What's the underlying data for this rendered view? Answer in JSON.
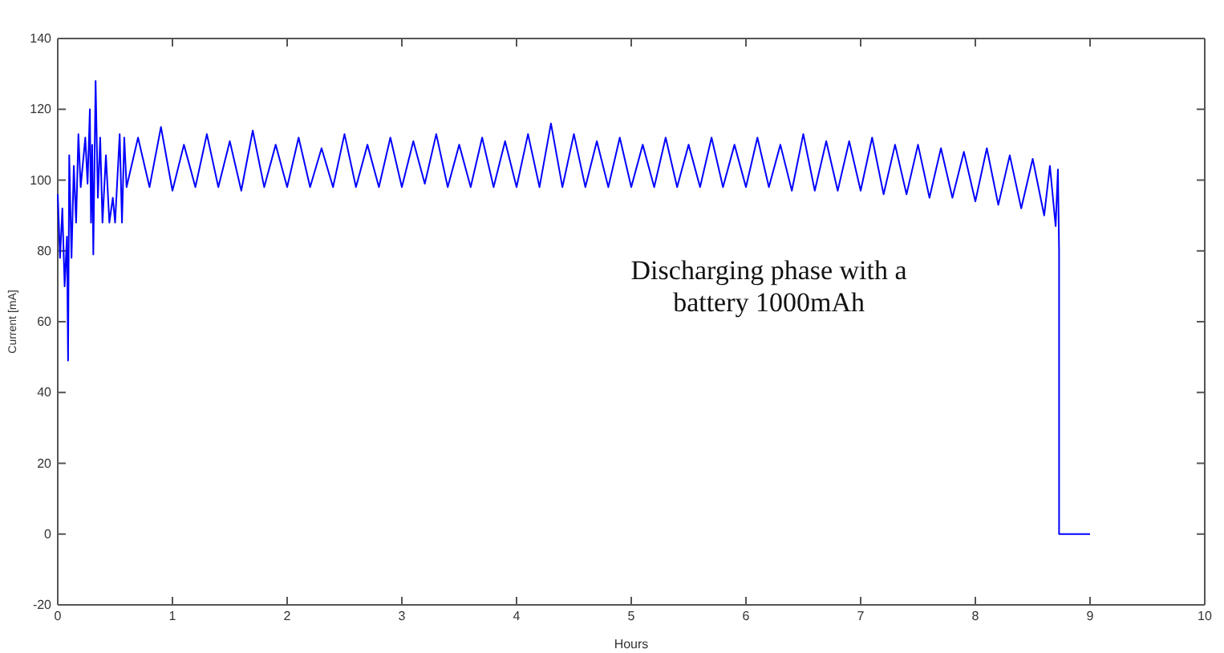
{
  "chart_data": {
    "type": "line",
    "xlabel": "Hours",
    "ylabel": "Current [mA]",
    "annotations": [
      "Discharging phase with a battery 1000mAh"
    ],
    "xlim": [
      0,
      10
    ],
    "xticks": [
      0,
      1,
      2,
      3,
      4,
      5,
      6,
      7,
      8,
      9,
      10
    ],
    "ylim": [
      -20,
      140
    ],
    "yticks": [
      -20,
      0,
      20,
      40,
      60,
      80,
      100,
      120,
      140
    ],
    "grid": false,
    "marker": "none",
    "line_style": "solid",
    "series": [
      {
        "color": "#0000ff",
        "x": [
          0,
          0.02,
          0.04,
          0.06,
          0.08,
          0.09,
          0.1,
          0.12,
          0.14,
          0.16,
          0.18,
          0.2,
          0.24,
          0.26,
          0.28,
          0.29,
          0.3,
          0.31,
          0.33,
          0.35,
          0.37,
          0.39,
          0.42,
          0.45,
          0.48,
          0.5,
          0.54,
          0.56,
          0.58,
          0.6,
          0.7,
          0.8,
          0.9,
          1.0,
          1.1,
          1.2,
          1.3,
          1.4,
          1.5,
          1.6,
          1.7,
          1.8,
          1.9,
          2.0,
          2.1,
          2.2,
          2.3,
          2.4,
          2.5,
          2.6,
          2.7,
          2.8,
          2.9,
          3.0,
          3.1,
          3.2,
          3.3,
          3.4,
          3.5,
          3.6,
          3.7,
          3.8,
          3.9,
          4.0,
          4.1,
          4.2,
          4.3,
          4.4,
          4.5,
          4.6,
          4.7,
          4.8,
          4.9,
          5.0,
          5.1,
          5.2,
          5.3,
          5.4,
          5.5,
          5.6,
          5.7,
          5.8,
          5.9,
          6.0,
          6.1,
          6.2,
          6.3,
          6.4,
          6.5,
          6.6,
          6.7,
          6.8,
          6.9,
          7.0,
          7.1,
          7.2,
          7.3,
          7.4,
          7.5,
          7.6,
          7.7,
          7.8,
          7.9,
          8.0,
          8.1,
          8.2,
          8.3,
          8.4,
          8.5,
          8.6,
          8.65,
          8.7,
          8.72,
          8.73,
          8.73,
          9.0
        ],
        "values": [
          96,
          78,
          92,
          70,
          84,
          49,
          107,
          78,
          104,
          88,
          113,
          98,
          112,
          99,
          120,
          88,
          110,
          79,
          128,
          95,
          112,
          88,
          107,
          88,
          95,
          88,
          113,
          88,
          112,
          98,
          112,
          98,
          115,
          97,
          110,
          98,
          113,
          98,
          111,
          97,
          114,
          98,
          110,
          98,
          112,
          98,
          109,
          98,
          113,
          98,
          110,
          98,
          112,
          98,
          111,
          99,
          113,
          98,
          110,
          98,
          112,
          98,
          111,
          98,
          113,
          98,
          116,
          98,
          113,
          98,
          111,
          98,
          112,
          98,
          110,
          98,
          112,
          98,
          110,
          98,
          112,
          98,
          110,
          98,
          112,
          98,
          110,
          97,
          113,
          97,
          111,
          97,
          111,
          97,
          112,
          96,
          110,
          96,
          110,
          95,
          109,
          95,
          108,
          94,
          109,
          93,
          107,
          92,
          106,
          90,
          104,
          87,
          103,
          80,
          0,
          0
        ]
      }
    ]
  }
}
